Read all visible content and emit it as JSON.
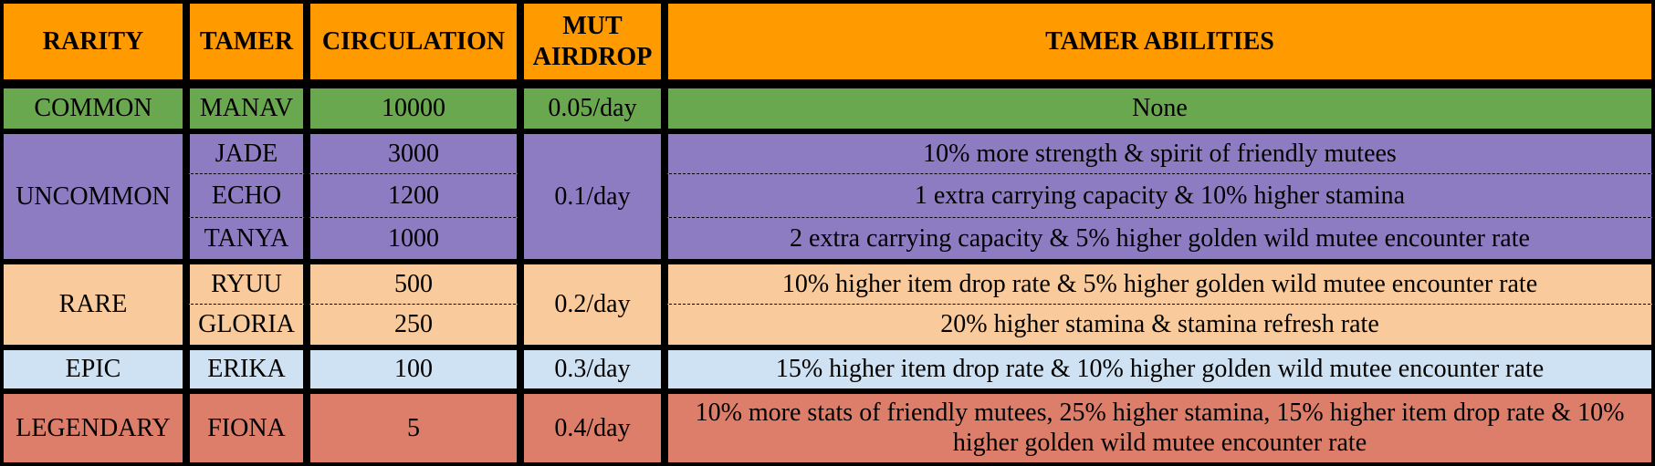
{
  "headers": {
    "rarity": "RARITY",
    "tamer": "TAMER",
    "circulation": "CIRCULATION",
    "mut_airdrop": "MUT AIRDROP",
    "abilities": "TAMER ABILITIES"
  },
  "rows": {
    "common": {
      "rarity": "COMMON",
      "airdrop": "0.05/day",
      "tamers": [
        {
          "name": "MANAV",
          "circulation": "10000",
          "ability": "None"
        }
      ]
    },
    "uncommon": {
      "rarity": "UNCOMMON",
      "airdrop": "0.1/day",
      "tamers": [
        {
          "name": "JADE",
          "circulation": "3000",
          "ability": "10% more strength & spirit of friendly mutees"
        },
        {
          "name": "ECHO",
          "circulation": "1200",
          "ability": "1 extra carrying capacity & 10% higher stamina"
        },
        {
          "name": "TANYA",
          "circulation": "1000",
          "ability": "2 extra carrying capacity & 5% higher golden wild mutee encounter rate"
        }
      ]
    },
    "rare": {
      "rarity": "RARE",
      "airdrop": "0.2/day",
      "tamers": [
        {
          "name": "RYUU",
          "circulation": "500",
          "ability": "10% higher item drop rate & 5% higher golden wild mutee encounter rate"
        },
        {
          "name": "GLORIA",
          "circulation": "250",
          "ability": "20% higher stamina & stamina refresh rate"
        }
      ]
    },
    "epic": {
      "rarity": "EPIC",
      "airdrop": "0.3/day",
      "tamers": [
        {
          "name": "ERIKA",
          "circulation": "100",
          "ability": "15% higher item drop rate & 10% higher golden wild mutee encounter rate"
        }
      ]
    },
    "legendary": {
      "rarity": "LEGENDARY",
      "airdrop": "0.4/day",
      "tamers": [
        {
          "name": "FIONA",
          "circulation": "5",
          "ability": "10% more stats of friendly mutees, 25% higher stamina, 15% higher item drop rate & 10% higher golden wild mutee encounter rate"
        }
      ]
    }
  },
  "colors": {
    "header": "#ff9a00",
    "common": "#6aa84f",
    "uncommon": "#8e7cc3",
    "rare": "#f9cb9c",
    "epic": "#cfe2f3",
    "legendary": "#dd7e6b"
  }
}
